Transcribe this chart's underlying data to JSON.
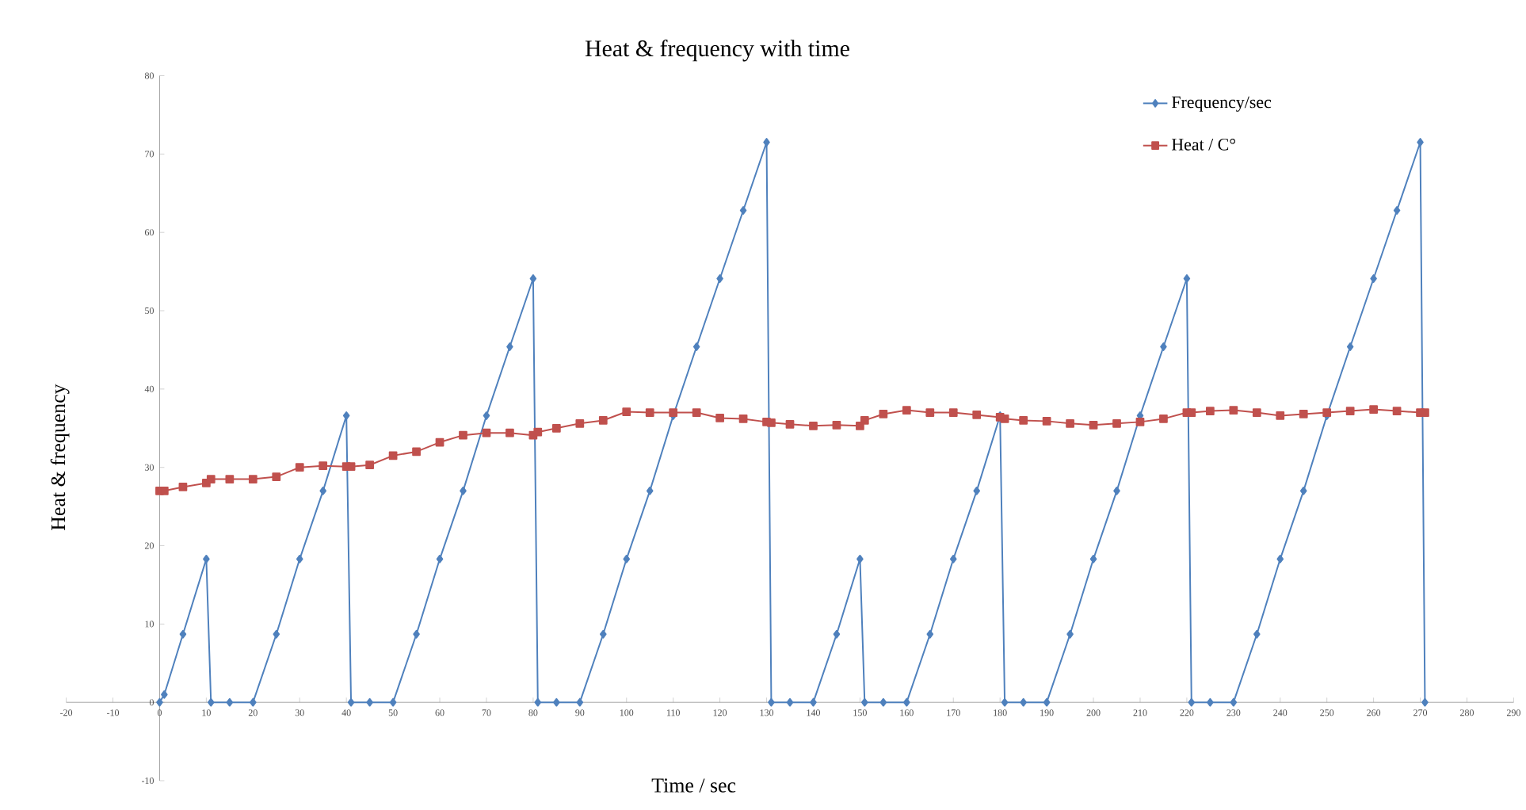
{
  "chart_data": {
    "type": "line",
    "title": "Heat & frequency with time",
    "xlabel": "Time / sec",
    "ylabel": "Heat & frequency",
    "xlim": [
      -20,
      290
    ],
    "xticks": [
      -20,
      -10,
      0,
      10,
      20,
      30,
      40,
      50,
      60,
      70,
      80,
      90,
      100,
      110,
      120,
      130,
      140,
      150,
      160,
      170,
      180,
      190,
      200,
      210,
      220,
      230,
      240,
      250,
      260,
      270,
      280,
      290
    ],
    "ylim": [
      -10,
      80
    ],
    "yticks": [
      -10,
      0,
      10,
      20,
      30,
      40,
      50,
      60,
      70,
      80
    ],
    "grid": false,
    "legend": "top right",
    "line_style": "solid",
    "series": [
      {
        "name": "Frequency/sec",
        "color": "#4f81bd",
        "marker": "diamond",
        "x": [
          0,
          1,
          5,
          10,
          11,
          15,
          20,
          25,
          30,
          35,
          40,
          41,
          45,
          50,
          55,
          60,
          65,
          70,
          75,
          80,
          81,
          85,
          90,
          95,
          100,
          105,
          110,
          115,
          120,
          125,
          130,
          131,
          135,
          140,
          145,
          150,
          151,
          155,
          160,
          165,
          170,
          175,
          180,
          181,
          185,
          190,
          195,
          200,
          205,
          210,
          215,
          220,
          221,
          225,
          230,
          235,
          240,
          245,
          250,
          255,
          260,
          265,
          270,
          271
        ],
        "values": [
          0,
          1,
          8.7,
          18.3,
          0,
          0,
          0,
          8.7,
          18.3,
          27,
          36.6,
          0,
          0,
          0,
          8.7,
          18.3,
          27,
          36.6,
          45.4,
          54.1,
          0,
          0,
          0,
          8.7,
          18.3,
          27,
          36.6,
          45.4,
          54.1,
          62.8,
          71.5,
          0,
          0,
          0,
          8.7,
          18.3,
          0,
          0,
          0,
          8.7,
          18.3,
          27,
          36.6,
          0,
          0,
          0,
          8.7,
          18.3,
          27,
          36.6,
          45.4,
          54.1,
          0,
          0,
          0,
          8.7,
          18.3,
          27,
          36.6,
          45.4,
          54.1,
          62.8,
          71.5,
          0
        ]
      },
      {
        "name": "Heat / C°",
        "color": "#c0504d",
        "marker": "square",
        "x": [
          0,
          1,
          5,
          10,
          11,
          15,
          20,
          25,
          30,
          35,
          40,
          41,
          45,
          50,
          55,
          60,
          65,
          70,
          75,
          80,
          81,
          85,
          90,
          95,
          100,
          105,
          110,
          115,
          120,
          125,
          130,
          131,
          135,
          140,
          145,
          150,
          151,
          155,
          160,
          165,
          170,
          175,
          180,
          181,
          185,
          190,
          195,
          200,
          205,
          210,
          215,
          220,
          221,
          225,
          230,
          235,
          240,
          245,
          250,
          255,
          260,
          265,
          270,
          271
        ],
        "values": [
          27,
          27,
          27.5,
          28,
          28.5,
          28.5,
          28.5,
          28.8,
          30,
          30.2,
          30.1,
          30.1,
          30.3,
          31.5,
          32,
          33.2,
          34.1,
          34.4,
          34.4,
          34.1,
          34.5,
          35,
          35.6,
          36,
          37.1,
          37,
          37,
          37,
          36.3,
          36.2,
          35.8,
          35.7,
          35.5,
          35.3,
          35.4,
          35.3,
          36,
          36.8,
          37.3,
          37,
          37,
          36.7,
          36.4,
          36.2,
          36,
          35.9,
          35.6,
          35.4,
          35.6,
          35.8,
          36.2,
          37,
          37,
          37.2,
          37.3,
          37,
          36.6,
          36.8,
          37,
          37.2,
          37.4,
          37.2,
          37,
          37
        ]
      }
    ]
  }
}
